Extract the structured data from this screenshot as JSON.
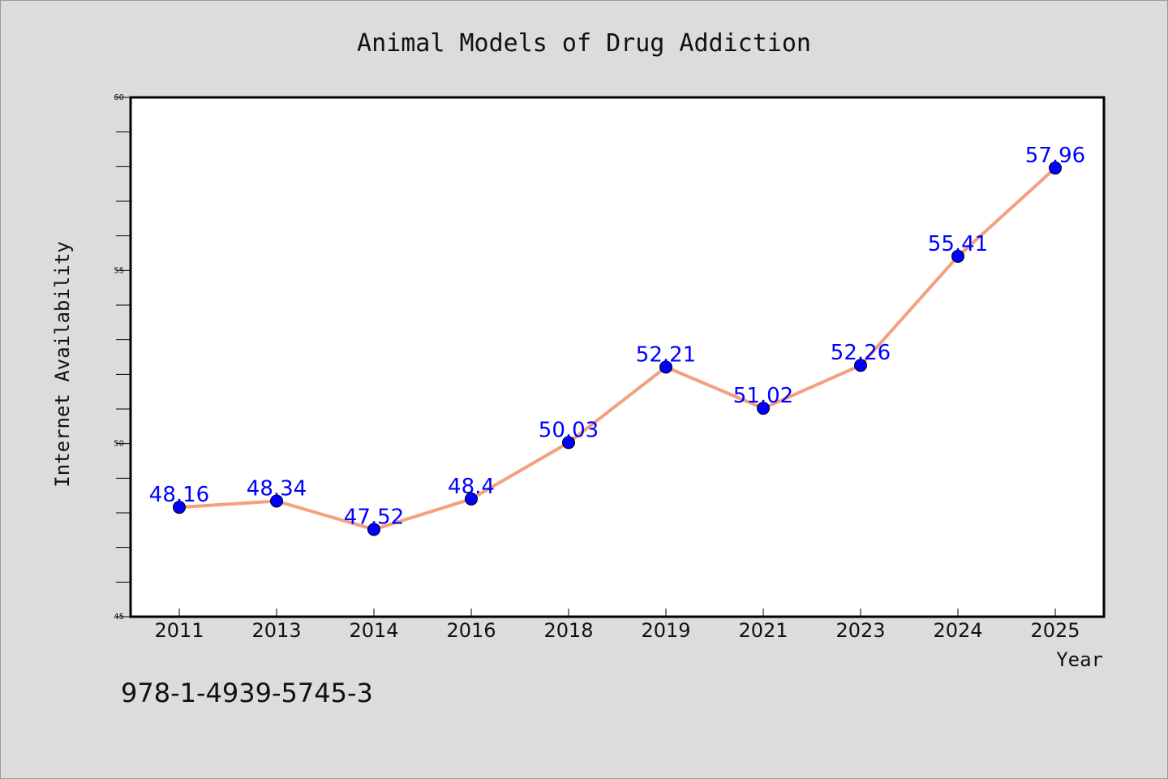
{
  "chart_data": {
    "type": "line",
    "title": "Animal Models of Drug Addiction",
    "xlabel": "Year",
    "ylabel": "Internet Availability",
    "categories": [
      "2011",
      "2013",
      "2014",
      "2016",
      "2018",
      "2019",
      "2021",
      "2023",
      "2024",
      "2025"
    ],
    "values": [
      48.16,
      48.34,
      47.52,
      48.4,
      50.03,
      52.21,
      51.02,
      52.26,
      55.41,
      57.96
    ],
    "data_labels": [
      "48.16",
      "48.34",
      "47.52",
      "48.4",
      "50.03",
      "52.21",
      "51.02",
      "52.26",
      "55.41",
      "57.96"
    ],
    "ylim": [
      45,
      60
    ],
    "yticks": [
      "45",
      "50",
      "55",
      "60"
    ],
    "grid": false,
    "line_color": "#f4a07e",
    "marker_color": "#0000ff",
    "label_color": "#0000ff"
  },
  "footer": {
    "isbn": "978-1-4939-5745-3"
  }
}
